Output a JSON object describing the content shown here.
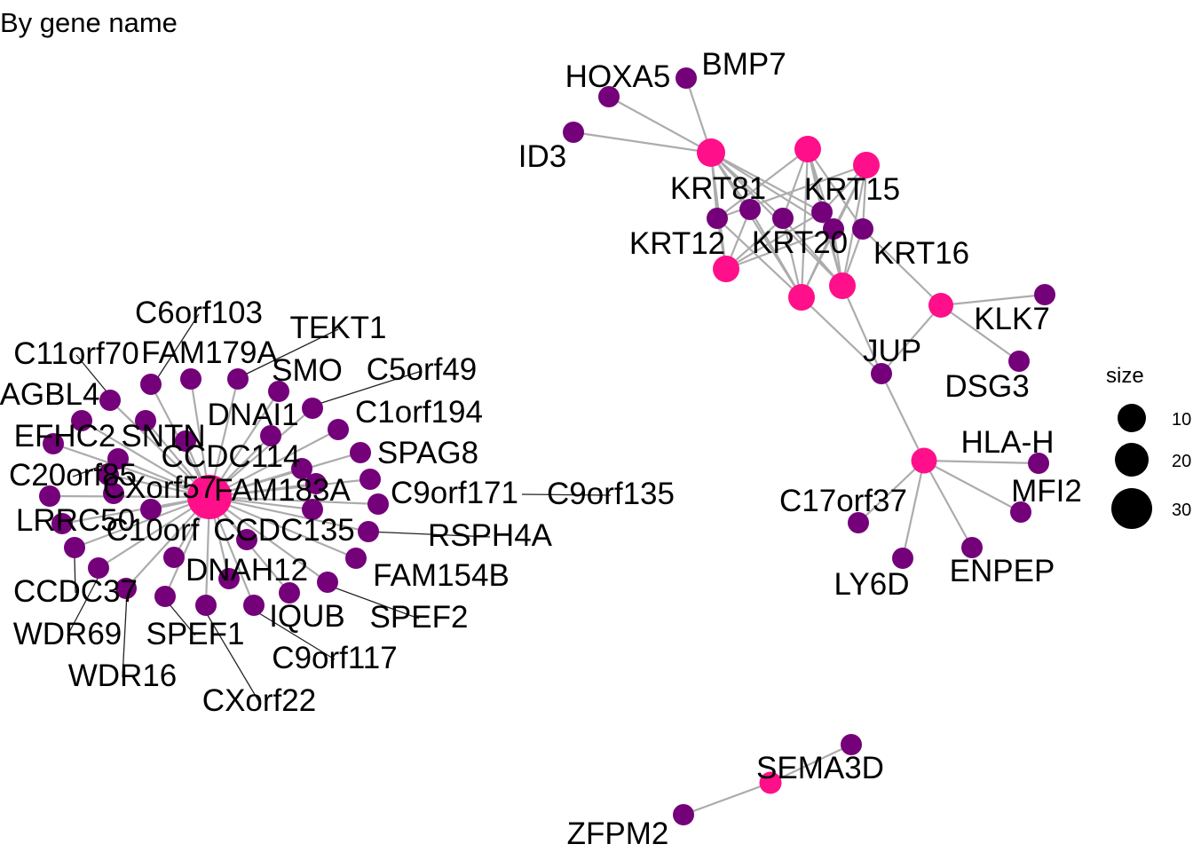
{
  "title": "By gene name",
  "colors": {
    "hub": "#ff0f8a",
    "gene": "#74007a",
    "edge": "#acacac",
    "leader": "#222222"
  },
  "legend": {
    "title": "size",
    "items": [
      "10",
      "20",
      "30"
    ]
  },
  "nodes": [
    {
      "id": "hub_cilia",
      "kind": "hub",
      "label": "FAM183A",
      "size": 32
    },
    {
      "id": "hub_krt_a",
      "kind": "hub",
      "label": "",
      "size": 14
    },
    {
      "id": "hub_krt_b",
      "kind": "hub",
      "label": "",
      "size": 12
    },
    {
      "id": "hub_krt_c",
      "kind": "hub",
      "label": "",
      "size": 12
    },
    {
      "id": "hub_krt_d",
      "kind": "hub",
      "label": "",
      "size": 12
    },
    {
      "id": "hub_krt_e",
      "kind": "hub",
      "label": "",
      "size": 12
    },
    {
      "id": "hub_krt_f",
      "kind": "hub",
      "label": "",
      "size": 12
    },
    {
      "id": "hub_klk",
      "kind": "hub",
      "label": "",
      "size": 10
    },
    {
      "id": "hub_hla",
      "kind": "hub",
      "label": "",
      "size": 11
    },
    {
      "id": "hub_sema",
      "kind": "hub",
      "label": "SEMA3D",
      "size": 7
    },
    {
      "id": "HOXA5",
      "kind": "gene",
      "label": "HOXA5"
    },
    {
      "id": "BMP7",
      "kind": "gene",
      "label": "BMP7"
    },
    {
      "id": "ID3",
      "kind": "gene",
      "label": "ID3"
    },
    {
      "id": "KRT81",
      "kind": "gene",
      "label": "KRT81"
    },
    {
      "id": "KRT15",
      "kind": "gene",
      "label": "KRT15"
    },
    {
      "id": "KRT12",
      "kind": "gene",
      "label": "KRT12"
    },
    {
      "id": "KRT20",
      "kind": "gene",
      "label": "KRT20"
    },
    {
      "id": "KRT_x",
      "kind": "gene",
      "label": ""
    },
    {
      "id": "KRT16",
      "kind": "gene",
      "label": "KRT16"
    },
    {
      "id": "KLK7",
      "kind": "gene",
      "label": "KLK7"
    },
    {
      "id": "DSG3",
      "kind": "gene",
      "label": "DSG3"
    },
    {
      "id": "JUP",
      "kind": "gene",
      "label": "JUP"
    },
    {
      "id": "HLA-H",
      "kind": "gene",
      "label": "HLA-H"
    },
    {
      "id": "MFI2",
      "kind": "gene",
      "label": "MFI2"
    },
    {
      "id": "C17orf37",
      "kind": "gene",
      "label": "C17orf37"
    },
    {
      "id": "LY6D",
      "kind": "gene",
      "label": "LY6D"
    },
    {
      "id": "ENPEP",
      "kind": "gene",
      "label": "ENPEP"
    },
    {
      "id": "SEMA_top",
      "kind": "gene",
      "label": ""
    },
    {
      "id": "ZFPM2",
      "kind": "gene",
      "label": "ZFPM2"
    },
    {
      "id": "C6orf103",
      "kind": "gene",
      "label": "C6orf103"
    },
    {
      "id": "TEKT1",
      "kind": "gene",
      "label": "TEKT1"
    },
    {
      "id": "C11orf70",
      "kind": "gene",
      "label": "C11orf70"
    },
    {
      "id": "FAM179A",
      "kind": "gene",
      "label": "FAM179A"
    },
    {
      "id": "SMO",
      "kind": "gene",
      "label": "SMO"
    },
    {
      "id": "C5orf49",
      "kind": "gene",
      "label": "C5orf49"
    },
    {
      "id": "AGBL4",
      "kind": "gene",
      "label": "AGBL4"
    },
    {
      "id": "DNAI1",
      "kind": "gene",
      "label": "DNAI1"
    },
    {
      "id": "C1orf194",
      "kind": "gene",
      "label": "C1orf194"
    },
    {
      "id": "EFHC2",
      "kind": "gene",
      "label": "EFHC2"
    },
    {
      "id": "SNTN",
      "kind": "gene",
      "label": "SNTN"
    },
    {
      "id": "SPAG8",
      "kind": "gene",
      "label": "SPAG8"
    },
    {
      "id": "CCDC114",
      "kind": "gene",
      "label": "CCDC114"
    },
    {
      "id": "C20orf85",
      "kind": "gene",
      "label": "C20orf85"
    },
    {
      "id": "CXorf57",
      "kind": "gene",
      "label": "CXorf57"
    },
    {
      "id": "C9orf171",
      "kind": "gene",
      "label": "C9orf171"
    },
    {
      "id": "C9orf135",
      "kind": "gene",
      "label": "C9orf135"
    },
    {
      "id": "LRRC50",
      "kind": "gene",
      "label": "LRRC50"
    },
    {
      "id": "C10orf",
      "kind": "gene",
      "label": "C10orf"
    },
    {
      "id": "CCDC135",
      "kind": "gene",
      "label": "CCDC135"
    },
    {
      "id": "RSPH4A",
      "kind": "gene",
      "label": "RSPH4A"
    },
    {
      "id": "FAM154B",
      "kind": "gene",
      "label": "FAM154B"
    },
    {
      "id": "DNAH12",
      "kind": "gene",
      "label": "DNAH12"
    },
    {
      "id": "CCDC37",
      "kind": "gene",
      "label": "CCDC37"
    },
    {
      "id": "SPEF2",
      "kind": "gene",
      "label": "SPEF2"
    },
    {
      "id": "IQUB",
      "kind": "gene",
      "label": "IQUB"
    },
    {
      "id": "WDR69",
      "kind": "gene",
      "label": "WDR69"
    },
    {
      "id": "SPEF1",
      "kind": "gene",
      "label": "SPEF1"
    },
    {
      "id": "C9orf117",
      "kind": "gene",
      "label": "C9orf117"
    },
    {
      "id": "WDR16",
      "kind": "gene",
      "label": "WDR16"
    },
    {
      "id": "CXorf22",
      "kind": "gene",
      "label": "CXorf22"
    },
    {
      "id": "cil_a",
      "kind": "gene",
      "label": ""
    },
    {
      "id": "cil_b",
      "kind": "gene",
      "label": ""
    },
    {
      "id": "cil_c",
      "kind": "gene",
      "label": ""
    },
    {
      "id": "cil_d",
      "kind": "gene",
      "label": ""
    },
    {
      "id": "cil_e",
      "kind": "gene",
      "label": ""
    },
    {
      "id": "cil_f",
      "kind": "gene",
      "label": ""
    }
  ],
  "edges": [
    [
      "HOXA5",
      "hub_krt_a"
    ],
    [
      "BMP7",
      "hub_krt_a"
    ],
    [
      "ID3",
      "hub_krt_a"
    ],
    [
      "hub_krt_a",
      "KRT81"
    ],
    [
      "hub_krt_a",
      "KRT20"
    ],
    [
      "hub_krt_a",
      "KRT15"
    ],
    [
      "hub_krt_a",
      "KRT_x"
    ],
    [
      "hub_krt_a",
      "KRT12"
    ],
    [
      "hub_krt_a",
      "hub_krt_d"
    ],
    [
      "hub_krt_a",
      "hub_krt_e"
    ],
    [
      "hub_krt_a",
      "hub_krt_f"
    ],
    [
      "hub_krt_b",
      "KRT81"
    ],
    [
      "hub_krt_b",
      "KRT15"
    ],
    [
      "hub_krt_b",
      "KRT20"
    ],
    [
      "hub_krt_b",
      "KRT_x"
    ],
    [
      "hub_krt_b",
      "KRT16"
    ],
    [
      "hub_krt_b",
      "hub_krt_e"
    ],
    [
      "hub_krt_b",
      "hub_krt_f"
    ],
    [
      "hub_krt_c",
      "KRT15"
    ],
    [
      "hub_krt_c",
      "KRT16"
    ],
    [
      "hub_krt_c",
      "KRT_x"
    ],
    [
      "hub_krt_c",
      "KRT81"
    ],
    [
      "hub_krt_c",
      "hub_krt_f"
    ],
    [
      "hub_krt_c",
      "hub_krt_e"
    ],
    [
      "hub_krt_d",
      "KRT12"
    ],
    [
      "hub_krt_d",
      "KRT81"
    ],
    [
      "hub_krt_d",
      "KRT20"
    ],
    [
      "hub_krt_d",
      "KRT15"
    ],
    [
      "hub_krt_d",
      "KRT_x"
    ],
    [
      "hub_krt_e",
      "KRT20"
    ],
    [
      "hub_krt_e",
      "KRT12"
    ],
    [
      "hub_krt_e",
      "KRT81"
    ],
    [
      "hub_krt_e",
      "KRT_x"
    ],
    [
      "hub_krt_e",
      "JUP"
    ],
    [
      "hub_krt_f",
      "KRT20"
    ],
    [
      "hub_krt_f",
      "KRT15"
    ],
    [
      "hub_krt_f",
      "KRT16"
    ],
    [
      "hub_krt_f",
      "KRT_x"
    ],
    [
      "hub_krt_f",
      "JUP"
    ],
    [
      "KRT16",
      "hub_klk"
    ],
    [
      "hub_klk",
      "KLK7"
    ],
    [
      "hub_klk",
      "DSG3"
    ],
    [
      "hub_klk",
      "JUP"
    ],
    [
      "JUP",
      "hub_hla"
    ],
    [
      "hub_hla",
      "HLA-H"
    ],
    [
      "hub_hla",
      "MFI2"
    ],
    [
      "hub_hla",
      "C17orf37"
    ],
    [
      "hub_hla",
      "LY6D"
    ],
    [
      "hub_hla",
      "ENPEP"
    ],
    [
      "SEMA_top",
      "hub_sema"
    ],
    [
      "hub_sema",
      "ZFPM2"
    ],
    [
      "hub_cilia",
      "C6orf103"
    ],
    [
      "hub_cilia",
      "TEKT1"
    ],
    [
      "hub_cilia",
      "C11orf70"
    ],
    [
      "hub_cilia",
      "FAM179A"
    ],
    [
      "hub_cilia",
      "SMO"
    ],
    [
      "hub_cilia",
      "C5orf49"
    ],
    [
      "hub_cilia",
      "AGBL4"
    ],
    [
      "hub_cilia",
      "DNAI1"
    ],
    [
      "hub_cilia",
      "C1orf194"
    ],
    [
      "hub_cilia",
      "EFHC2"
    ],
    [
      "hub_cilia",
      "SNTN"
    ],
    [
      "hub_cilia",
      "SPAG8"
    ],
    [
      "hub_cilia",
      "CCDC114"
    ],
    [
      "hub_cilia",
      "C20orf85"
    ],
    [
      "hub_cilia",
      "C9orf171"
    ],
    [
      "hub_cilia",
      "C9orf135"
    ],
    [
      "hub_cilia",
      "LRRC50"
    ],
    [
      "hub_cilia",
      "C10orf"
    ],
    [
      "hub_cilia",
      "CCDC135"
    ],
    [
      "hub_cilia",
      "RSPH4A"
    ],
    [
      "hub_cilia",
      "FAM154B"
    ],
    [
      "hub_cilia",
      "DNAH12"
    ],
    [
      "hub_cilia",
      "CCDC37"
    ],
    [
      "hub_cilia",
      "SPEF2"
    ],
    [
      "hub_cilia",
      "IQUB"
    ],
    [
      "hub_cilia",
      "WDR69"
    ],
    [
      "hub_cilia",
      "SPEF1"
    ],
    [
      "hub_cilia",
      "C9orf117"
    ],
    [
      "hub_cilia",
      "WDR16"
    ],
    [
      "hub_cilia",
      "CXorf22"
    ],
    [
      "hub_cilia",
      "cil_a"
    ],
    [
      "hub_cilia",
      "cil_b"
    ],
    [
      "hub_cilia",
      "cil_c"
    ],
    [
      "hub_cilia",
      "cil_d"
    ],
    [
      "hub_cilia",
      "cil_e"
    ],
    [
      "hub_cilia",
      "cil_f"
    ]
  ]
}
